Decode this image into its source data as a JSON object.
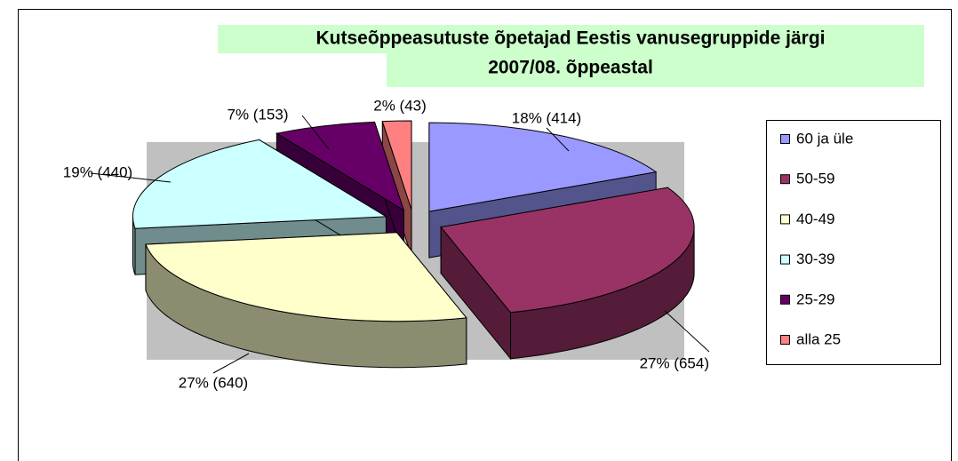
{
  "chart_data": {
    "type": "pie",
    "title": [
      "Kutseõppeasutuste õpetajad Eestis vanusegruppide järgi",
      "2007/08. õppeastal"
    ],
    "categories": [
      "60 ja üle",
      "50-59",
      "40-49",
      "30-39",
      "25-29",
      "alla 25"
    ],
    "values": [
      414,
      654,
      640,
      440,
      153,
      43
    ],
    "value_labels": [
      "18% (414)",
      "27% (654)",
      "27% (640)",
      "19% (440)",
      "7% (153)",
      "2% (43)"
    ],
    "colors": [
      "#9999ff",
      "#993366",
      "#ffffcc",
      "#ccffff",
      "#660066",
      "#ff8080"
    ],
    "legend": "right"
  }
}
